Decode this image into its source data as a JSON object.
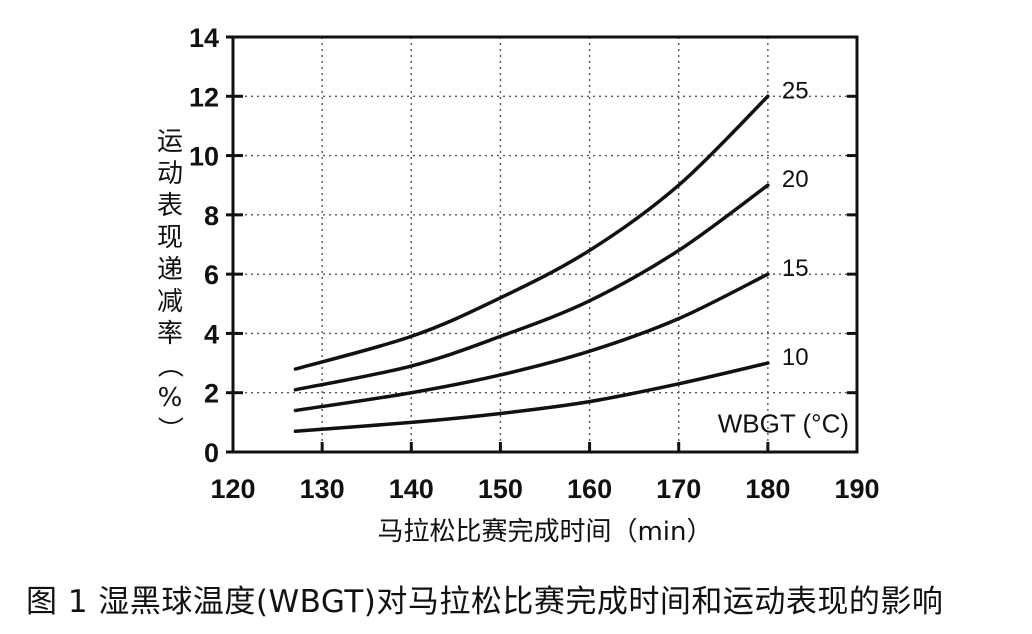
{
  "chart_data": {
    "type": "line",
    "xlabel": "马拉松比赛完成时间（min）",
    "ylabel": "运动表现递减率（%）",
    "xlim": [
      120,
      190
    ],
    "ylim": [
      0,
      14
    ],
    "xticks": [
      120,
      130,
      140,
      150,
      160,
      170,
      180,
      190
    ],
    "yticks": [
      0,
      2,
      4,
      6,
      8,
      10,
      12,
      14
    ],
    "grid": true,
    "legend_title": "WBGT (°C)",
    "x": [
      127,
      140,
      150,
      160,
      170,
      180
    ],
    "series": [
      {
        "name": "10",
        "values": [
          0.7,
          1.0,
          1.3,
          1.7,
          2.3,
          3.0
        ]
      },
      {
        "name": "15",
        "values": [
          1.4,
          2.0,
          2.6,
          3.4,
          4.5,
          6.0
        ]
      },
      {
        "name": "20",
        "values": [
          2.1,
          2.9,
          3.9,
          5.1,
          6.8,
          9.0
        ]
      },
      {
        "name": "25",
        "values": [
          2.8,
          3.9,
          5.2,
          6.8,
          9.0,
          12.0
        ]
      }
    ]
  },
  "caption": "图 1  湿黑球温度(WBGT)对马拉松比赛完成时间和运动表现的影响"
}
